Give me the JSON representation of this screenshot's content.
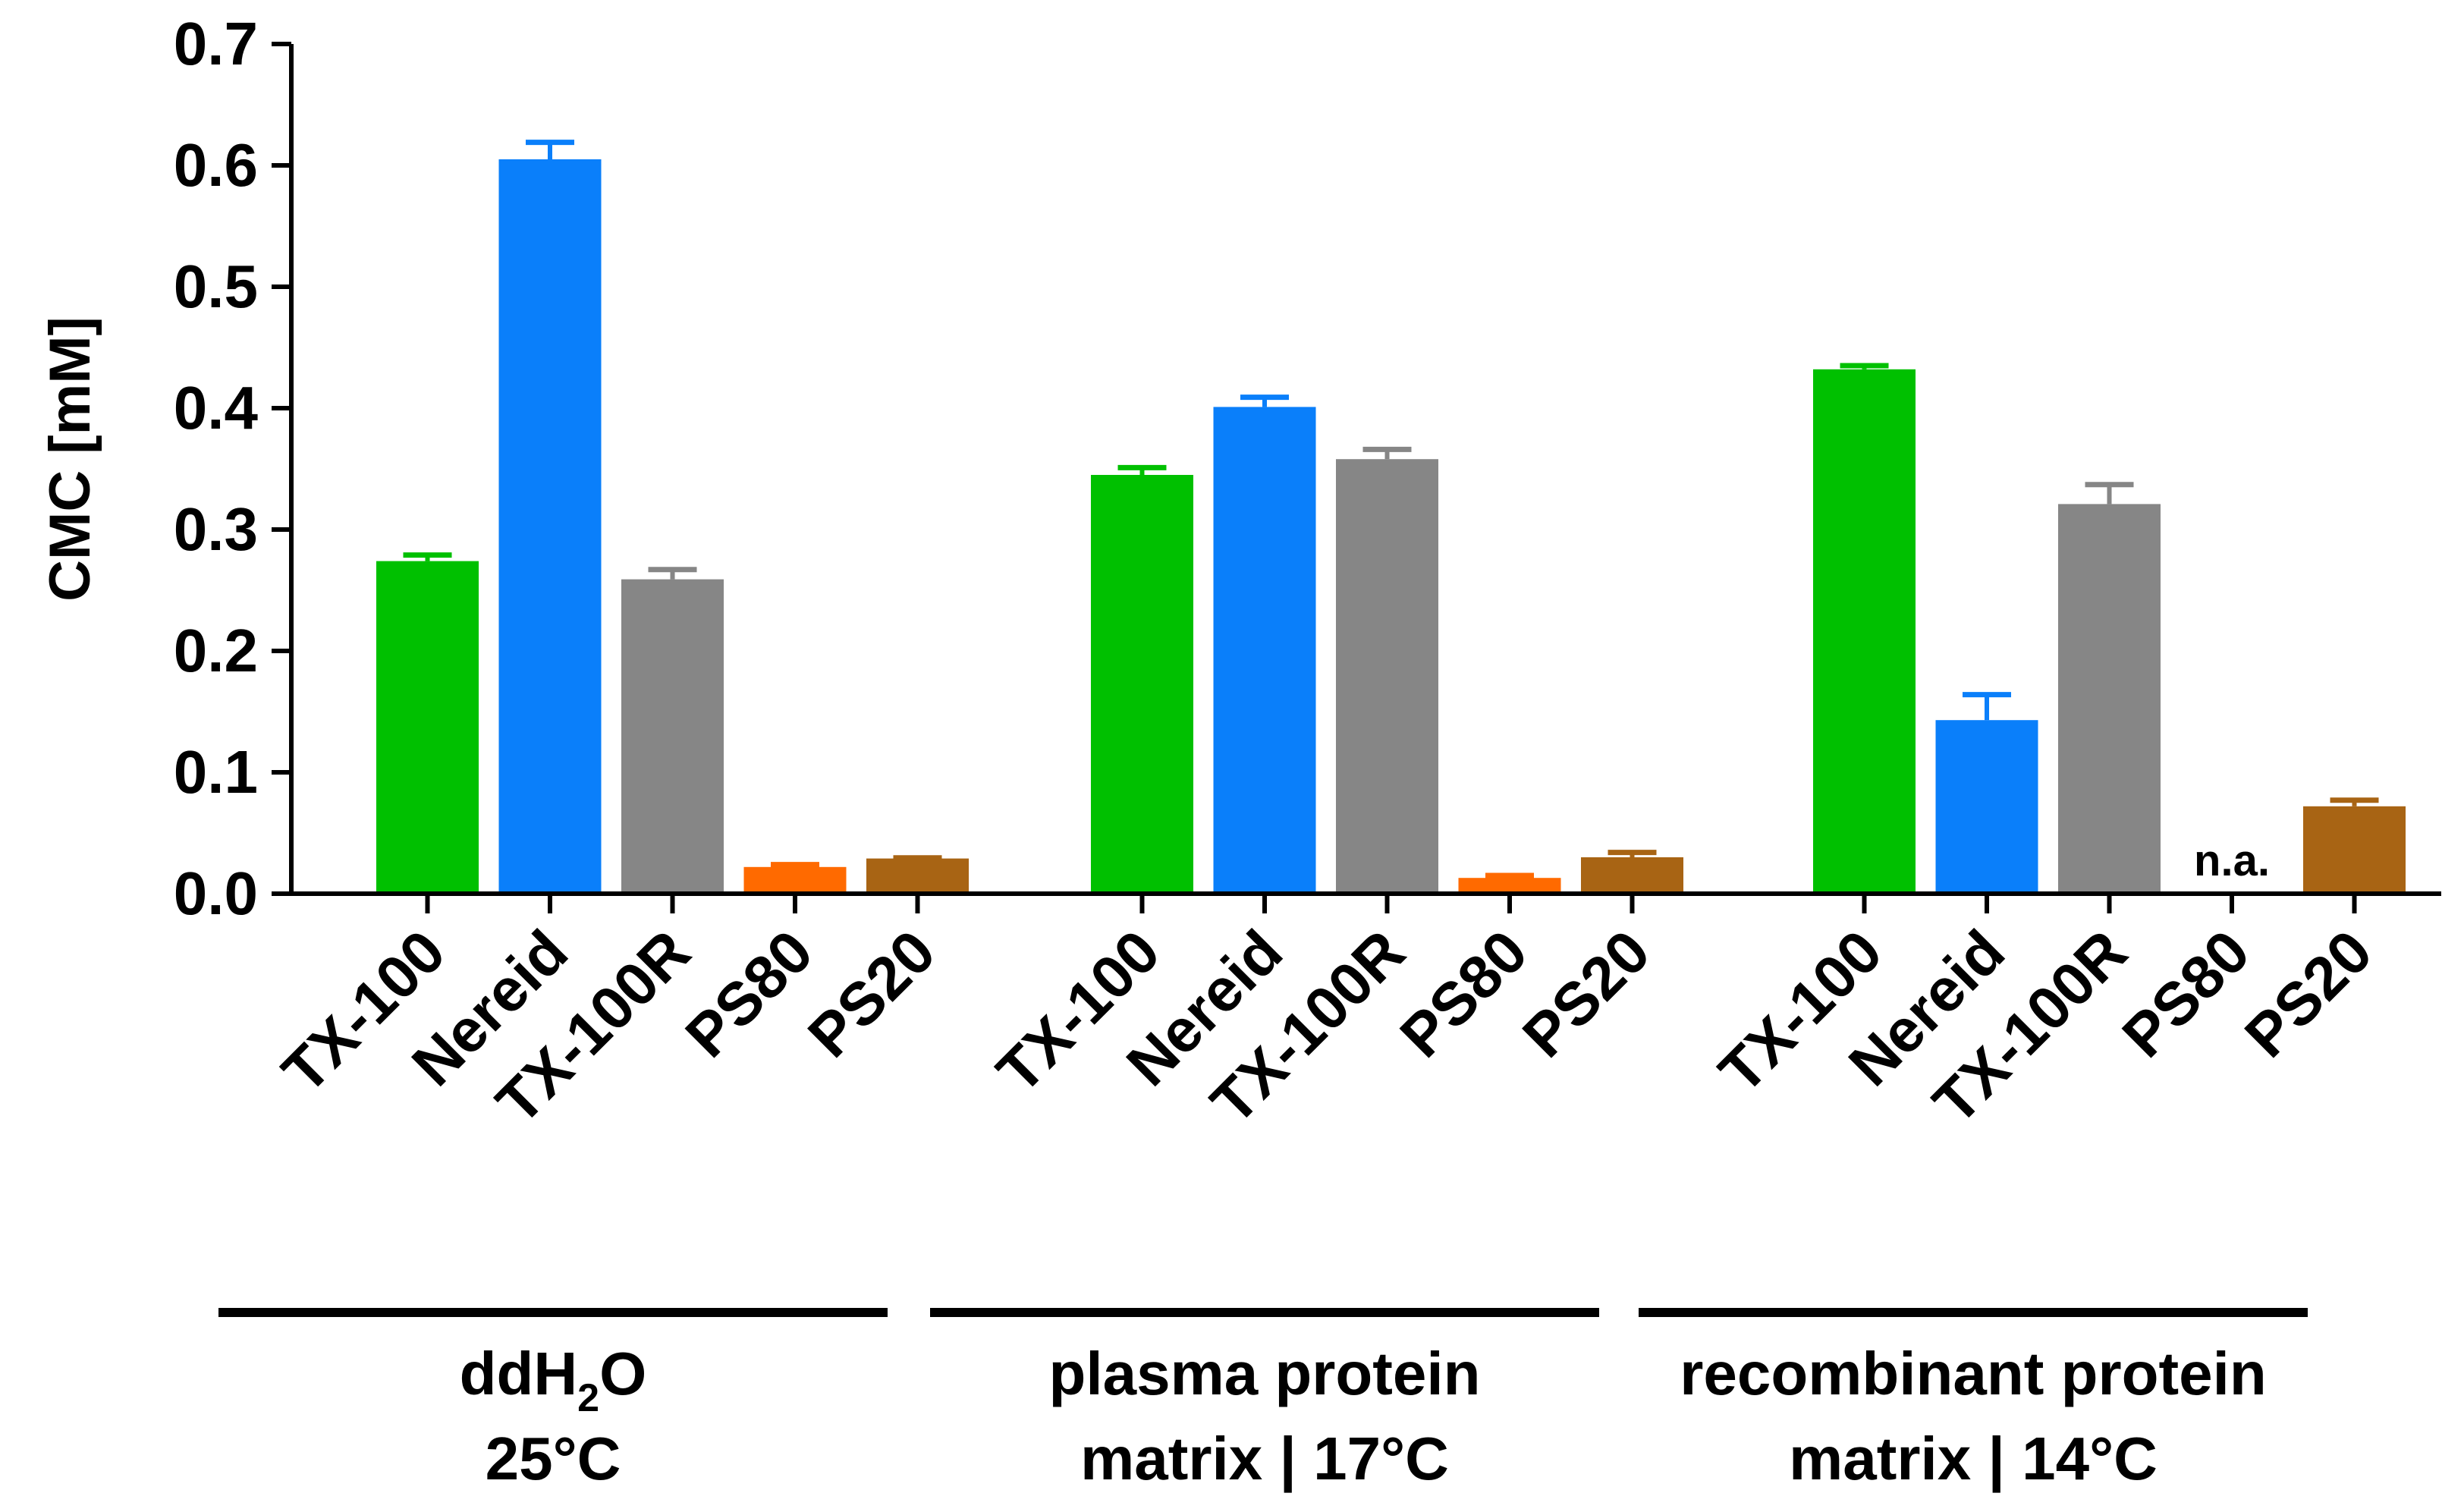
{
  "chart_data": {
    "type": "bar",
    "title": "",
    "xlabel": "",
    "ylabel": "CMC [mM]",
    "ylim": [
      0,
      0.7
    ],
    "yticks": [
      "0.0",
      "0.1",
      "0.2",
      "0.3",
      "0.4",
      "0.5",
      "0.6",
      "0.7"
    ],
    "ytick_values": [
      0.0,
      0.1,
      0.2,
      0.3,
      0.4,
      0.5,
      0.6,
      0.7
    ],
    "grid": false,
    "colors": {
      "TX-100": "#00c000",
      "Nereid": "#0a7ffa",
      "TX-100R": "#868686",
      "PS80": "#ff6a00",
      "PS20": "#a86414"
    },
    "groups": [
      {
        "label": "ddH2O",
        "label_main": "ddH",
        "label_sub": "2",
        "label_tail": "O",
        "label_line2": "25°C",
        "bars": [
          {
            "category": "TX-100",
            "value": 0.274,
            "error": 0.005,
            "na": false
          },
          {
            "category": "Nereid",
            "value": 0.605,
            "error": 0.014,
            "na": false
          },
          {
            "category": "TX-100R",
            "value": 0.259,
            "error": 0.008,
            "na": false
          },
          {
            "category": "PS80",
            "value": 0.022,
            "error": 0.002,
            "na": false
          },
          {
            "category": "PS20",
            "value": 0.029,
            "error": 0.0005,
            "na": false
          }
        ]
      },
      {
        "label": "plasma protein",
        "label_line2": "matrix | 17°C",
        "bars": [
          {
            "category": "TX-100",
            "value": 0.345,
            "error": 0.006,
            "na": false
          },
          {
            "category": "Nereid",
            "value": 0.401,
            "error": 0.008,
            "na": false
          },
          {
            "category": "TX-100R",
            "value": 0.358,
            "error": 0.008,
            "na": false
          },
          {
            "category": "PS80",
            "value": 0.013,
            "error": 0.002,
            "na": false
          },
          {
            "category": "PS20",
            "value": 0.03,
            "error": 0.004,
            "na": false
          }
        ]
      },
      {
        "label": "recombinant protein",
        "label_line2": "matrix | 14°C",
        "bars": [
          {
            "category": "TX-100",
            "value": 0.432,
            "error": 0.003,
            "na": false
          },
          {
            "category": "Nereid",
            "value": 0.143,
            "error": 0.021,
            "na": false
          },
          {
            "category": "TX-100R",
            "value": 0.321,
            "error": 0.016,
            "na": false
          },
          {
            "category": "PS80",
            "value": null,
            "error": null,
            "na": true,
            "na_label": "n.a."
          },
          {
            "category": "PS20",
            "value": 0.072,
            "error": 0.005,
            "na": false
          }
        ]
      }
    ]
  }
}
